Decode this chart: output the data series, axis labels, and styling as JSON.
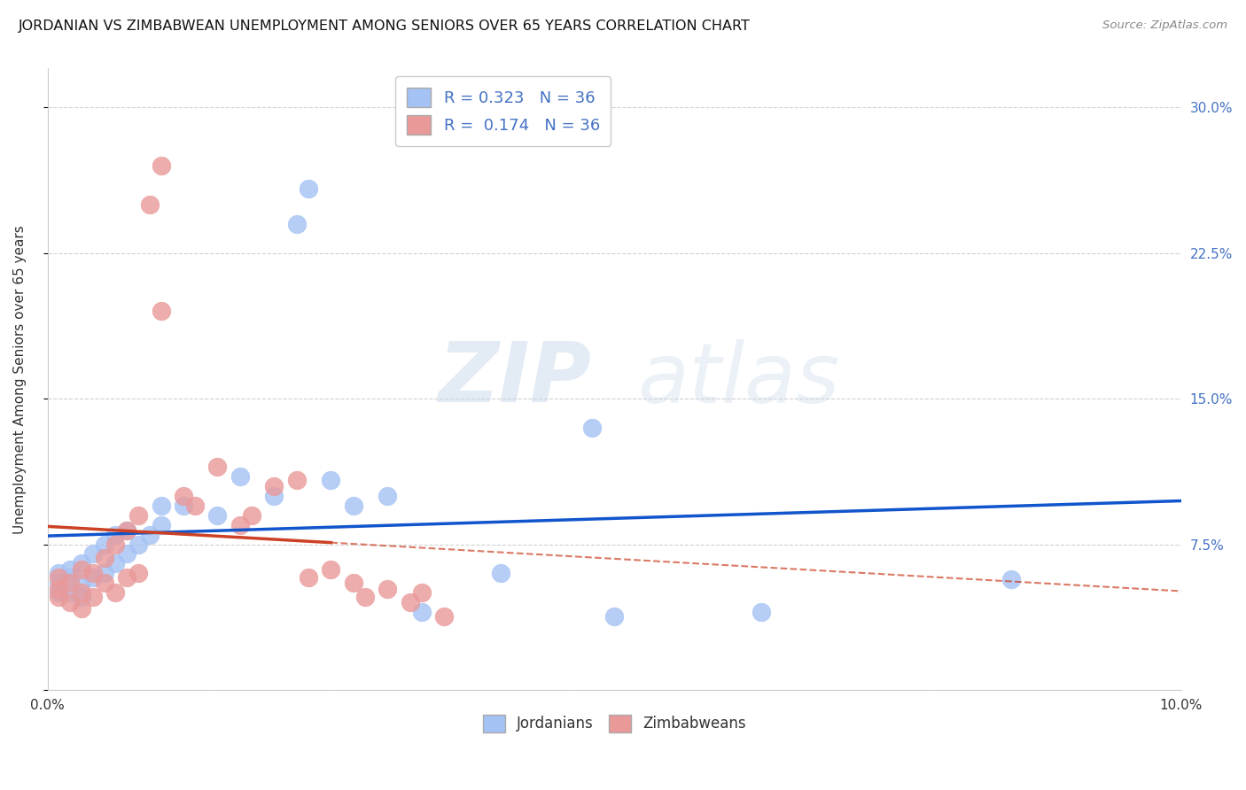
{
  "title": "JORDANIAN VS ZIMBABWEAN UNEMPLOYMENT AMONG SENIORS OVER 65 YEARS CORRELATION CHART",
  "source": "Source: ZipAtlas.com",
  "ylabel": "Unemployment Among Seniors over 65 years",
  "xlim": [
    0.0,
    0.1
  ],
  "ylim": [
    0.0,
    0.32
  ],
  "xticks": [
    0.0,
    0.02,
    0.04,
    0.06,
    0.08,
    0.1
  ],
  "xticklabels": [
    "0.0%",
    "",
    "",
    "",
    "",
    "10.0%"
  ],
  "yticks": [
    0.0,
    0.075,
    0.15,
    0.225,
    0.3
  ],
  "yticklabels_right": [
    "",
    "7.5%",
    "15.0%",
    "22.5%",
    "30.0%"
  ],
  "jordan_R": 0.323,
  "jordan_N": 36,
  "zimbab_R": 0.174,
  "zimbab_N": 36,
  "jordan_color": "#a4c2f4",
  "zimbab_color": "#ea9999",
  "jordan_line_color": "#1155cc",
  "zimbab_line_color": "#cc4125",
  "jordan_scatter_x": [
    0.001,
    0.001,
    0.001,
    0.002,
    0.002,
    0.002,
    0.003,
    0.003,
    0.003,
    0.004,
    0.004,
    0.005,
    0.005,
    0.006,
    0.006,
    0.007,
    0.007,
    0.008,
    0.009,
    0.01,
    0.01,
    0.012,
    0.015,
    0.017,
    0.02,
    0.022,
    0.023,
    0.025,
    0.027,
    0.03,
    0.033,
    0.04,
    0.048,
    0.05,
    0.063,
    0.085
  ],
  "jordan_scatter_y": [
    0.05,
    0.055,
    0.06,
    0.05,
    0.058,
    0.062,
    0.048,
    0.055,
    0.065,
    0.058,
    0.07,
    0.06,
    0.075,
    0.065,
    0.08,
    0.07,
    0.082,
    0.075,
    0.08,
    0.085,
    0.095,
    0.095,
    0.09,
    0.11,
    0.1,
    0.24,
    0.258,
    0.108,
    0.095,
    0.1,
    0.04,
    0.06,
    0.135,
    0.038,
    0.04,
    0.057
  ],
  "zimbab_scatter_x": [
    0.001,
    0.001,
    0.001,
    0.002,
    0.002,
    0.003,
    0.003,
    0.003,
    0.004,
    0.004,
    0.005,
    0.005,
    0.006,
    0.006,
    0.007,
    0.007,
    0.008,
    0.008,
    0.009,
    0.01,
    0.01,
    0.012,
    0.013,
    0.015,
    0.017,
    0.018,
    0.02,
    0.022,
    0.023,
    0.025,
    0.027,
    0.028,
    0.03,
    0.032,
    0.033,
    0.035
  ],
  "zimbab_scatter_y": [
    0.048,
    0.052,
    0.058,
    0.045,
    0.055,
    0.042,
    0.05,
    0.062,
    0.048,
    0.06,
    0.055,
    0.068,
    0.05,
    0.075,
    0.058,
    0.082,
    0.06,
    0.09,
    0.25,
    0.27,
    0.195,
    0.1,
    0.095,
    0.115,
    0.085,
    0.09,
    0.105,
    0.108,
    0.058,
    0.062,
    0.055,
    0.048,
    0.052,
    0.045,
    0.05,
    0.038
  ],
  "watermark_zip": "ZIP",
  "watermark_atlas": "atlas",
  "bg_color": "#ffffff",
  "grid_color": "#d0d0d0"
}
